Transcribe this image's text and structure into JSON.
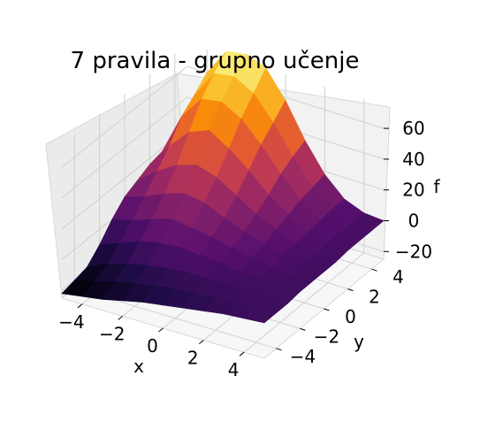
{
  "chart_data": {
    "type": "surface3d",
    "title": "7 pravila - grupno učenje",
    "xlabel": "x",
    "ylabel": "y",
    "zlabel": "f",
    "x_ticks": [
      "−4",
      "−2",
      "0",
      "2",
      "4"
    ],
    "y_ticks": [
      "−4",
      "−2",
      "0",
      "2",
      "4"
    ],
    "z_ticks": [
      "−20",
      "0",
      "20",
      "40",
      "60"
    ],
    "xlim": [
      -5,
      5
    ],
    "ylim": [
      -5,
      5
    ],
    "zlim": [
      -25,
      75
    ],
    "grid": true,
    "colormap": "inferno",
    "x": [
      -5,
      -4,
      -3,
      -2,
      -1,
      0,
      1,
      2,
      3,
      4,
      5
    ],
    "y": [
      -5,
      -4,
      -3,
      -2,
      -1,
      0,
      1,
      2,
      3,
      4,
      5
    ],
    "z": [
      [
        -22,
        -20,
        -18,
        -10,
        0,
        8,
        12,
        16,
        18,
        20,
        20
      ],
      [
        -20,
        -17,
        -12,
        -5,
        3,
        12,
        22,
        32,
        45,
        52,
        60
      ],
      [
        -18,
        -13,
        -8,
        0,
        8,
        18,
        30,
        45,
        60,
        70,
        78
      ],
      [
        -15,
        -10,
        -5,
        3,
        12,
        22,
        34,
        50,
        62,
        72,
        80
      ],
      [
        -12,
        -8,
        -3,
        4,
        10,
        20,
        30,
        42,
        55,
        65,
        75
      ],
      [
        -10,
        -6,
        -2,
        3,
        8,
        14,
        22,
        32,
        42,
        50,
        58
      ],
      [
        -8,
        -5,
        -2,
        2,
        5,
        9,
        14,
        20,
        27,
        32,
        36
      ],
      [
        -6,
        -4,
        -2,
        0,
        3,
        5,
        8,
        11,
        14,
        16,
        18
      ],
      [
        -4,
        -3,
        -2,
        -1,
        0,
        2,
        3,
        4,
        5,
        6,
        6
      ],
      [
        -3,
        -2,
        -2,
        -1,
        -1,
        0,
        0,
        1,
        1,
        1,
        1
      ],
      [
        -2,
        -2,
        -2,
        -1,
        -1,
        -1,
        -1,
        0,
        0,
        0,
        0
      ]
    ]
  }
}
